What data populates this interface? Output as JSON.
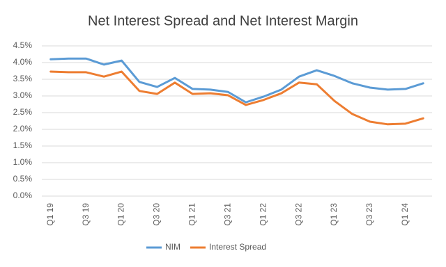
{
  "chart_data": {
    "type": "line",
    "title": "Net Interest Spread and Net Interest Margin",
    "categories": [
      "Q1 19",
      null,
      "Q3 19",
      null,
      "Q1 20",
      null,
      "Q3 20",
      null,
      "Q1 21",
      null,
      "Q3 21",
      null,
      "Q1 22",
      null,
      "Q3 22",
      null,
      "Q1 23",
      null,
      "Q3 23",
      null,
      "Q1 24",
      null
    ],
    "series": [
      {
        "name": "NIM",
        "color": "#5b9bd5",
        "values": [
          4.1,
          4.12,
          4.12,
          3.94,
          4.06,
          3.42,
          3.27,
          3.54,
          3.21,
          3.19,
          3.12,
          2.81,
          2.98,
          3.19,
          3.58,
          3.77,
          3.6,
          3.38,
          3.25,
          3.19,
          3.21,
          3.38
        ]
      },
      {
        "name": "Interest Spread",
        "color": "#ed7d31",
        "values": [
          3.73,
          3.71,
          3.71,
          3.58,
          3.73,
          3.15,
          3.06,
          3.4,
          3.06,
          3.08,
          3.02,
          2.73,
          2.88,
          3.08,
          3.4,
          3.35,
          2.85,
          2.46,
          2.23,
          2.15,
          2.17,
          2.33
        ]
      }
    ],
    "ylim": [
      0,
      4.5
    ],
    "yticks": [
      {
        "value": 0,
        "label": "0.0%"
      },
      {
        "value": 0.5,
        "label": "0.5%"
      },
      {
        "value": 1,
        "label": "1.0%"
      },
      {
        "value": 1.5,
        "label": "1.5%"
      },
      {
        "value": 2,
        "label": "2.0%"
      },
      {
        "value": 2.5,
        "label": "2.5%"
      },
      {
        "value": 3,
        "label": "3.0%"
      },
      {
        "value": 3.5,
        "label": "3.5%"
      },
      {
        "value": 4,
        "label": "4.0%"
      },
      {
        "value": 4.5,
        "label": "4.5%"
      }
    ],
    "grid": true,
    "legend": "bottom"
  }
}
